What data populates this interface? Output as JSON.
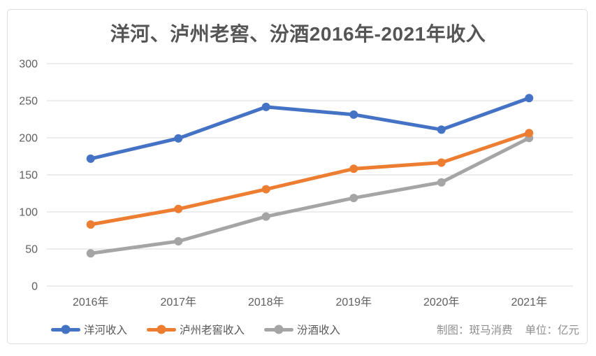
{
  "chart_data": {
    "type": "line",
    "title": "洋河、泸州老窖、汾酒2016年-2021年收入",
    "categories": [
      "2016年",
      "2017年",
      "2018年",
      "2019年",
      "2020年",
      "2021年"
    ],
    "series": [
      {
        "name": "洋河收入",
        "color": "#4472C4",
        "values": [
          171.8,
          199.2,
          241.6,
          231.3,
          211.0,
          253.5
        ]
      },
      {
        "name": "泸州老窖收入",
        "color": "#ED7D31",
        "values": [
          83.0,
          104.0,
          130.6,
          158.2,
          166.5,
          206.4
        ]
      },
      {
        "name": "汾酒收入",
        "color": "#A5A5A5",
        "values": [
          44.1,
          60.4,
          93.8,
          118.8,
          139.9,
          199.7
        ]
      }
    ],
    "ylim": [
      0,
      300
    ],
    "ytick_step": 50,
    "ytick_labels": [
      "0",
      "50",
      "100",
      "150",
      "200",
      "250",
      "300"
    ],
    "grid": "horizontal",
    "legend_position": "bottom"
  },
  "footer": {
    "credit_maker": "制图：斑马消费",
    "credit_unit": "单位：亿元"
  },
  "colors": {
    "grid": "#d9d9d9",
    "axis_text": "#5f5f5f",
    "title_text": "#555555",
    "frame_border": "#dedede",
    "credit_text": "#8f8f8f"
  }
}
